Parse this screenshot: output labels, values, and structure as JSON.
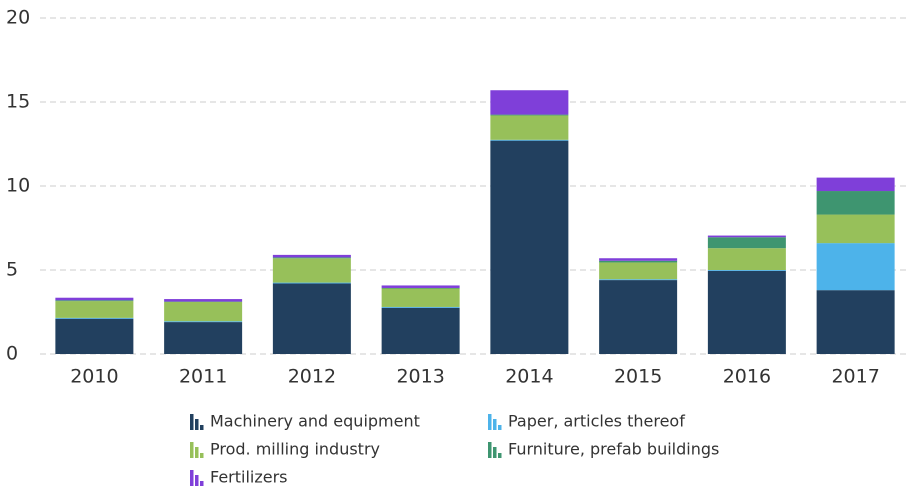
{
  "chart_data": {
    "type": "stacked_bar",
    "categories": [
      "2010",
      "2011",
      "2012",
      "2013",
      "2014",
      "2015",
      "2016",
      "2017"
    ],
    "series": [
      {
        "name": "Machinery and equipment",
        "color": "#22405f",
        "values": [
          2.1,
          1.9,
          4.2,
          2.75,
          12.7,
          4.4,
          4.95,
          3.8
        ]
      },
      {
        "name": "Paper, articles thereof",
        "color": "#4db3ea",
        "values": [
          0.05,
          0.05,
          0.05,
          0.05,
          0.05,
          0.05,
          0.05,
          2.8
        ]
      },
      {
        "name": "Prod. milling industry",
        "color": "#97c05a",
        "values": [
          1.0,
          1.15,
          1.45,
          1.1,
          1.45,
          1.0,
          1.3,
          1.7
        ]
      },
      {
        "name": "Furniture, prefab buildings",
        "color": "#3e9570",
        "values": [
          0.05,
          0.02,
          0.05,
          0.03,
          0.05,
          0.1,
          0.65,
          1.4
        ]
      },
      {
        "name": "Fertilizers",
        "color": "#7f3fd9",
        "values": [
          0.15,
          0.15,
          0.15,
          0.15,
          1.45,
          0.15,
          0.1,
          0.8
        ]
      }
    ],
    "ylim": [
      0,
      20
    ],
    "yticks": [
      0,
      5,
      10,
      15,
      20
    ],
    "grid": true
  }
}
